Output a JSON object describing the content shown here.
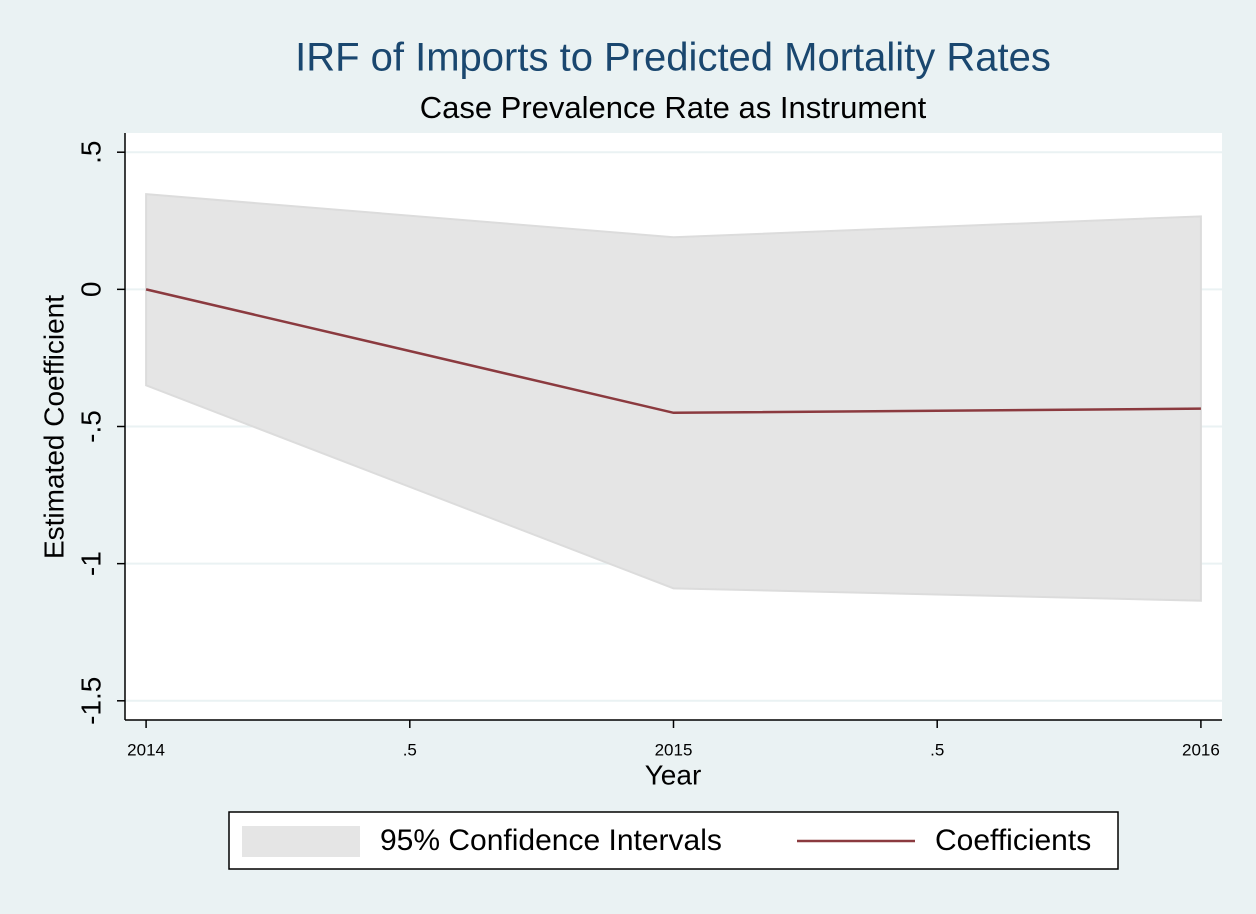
{
  "chart_data": {
    "type": "band_line",
    "title": "IRF of Imports to Predicted Mortality Rates",
    "subtitle": "Case Prevalence Rate as Instrument",
    "x_label": "Year",
    "y_label": "Estimated Coefficient",
    "x": [
      2014,
      2015,
      2016
    ],
    "series": [
      {
        "name": "95% Confidence Intervals",
        "color": "#e5e5e5",
        "lower": [
          -0.35,
          -1.09,
          -1.135
        ],
        "upper": [
          0.347,
          0.19,
          0.266
        ]
      },
      {
        "name": "Coefficients",
        "color": "#8b3a3f",
        "values": [
          0,
          -0.45,
          -0.435
        ]
      }
    ],
    "xlim": [
      2013.96,
      2016.04
    ],
    "xticks": [
      2014,
      {
        "value": 2014.5,
        "label": ".5"
      },
      2015,
      {
        "value": 2015.5,
        "label": ".5"
      },
      2016
    ],
    "ylim": [
      -1.57,
      0.57
    ],
    "yticks": [
      {
        "value": 0.5,
        "label": ".5"
      },
      0,
      {
        "value": -0.5,
        "label": "-.5"
      },
      -1,
      {
        "value": -1.5,
        "label": "-1.5"
      }
    ],
    "grid": true
  }
}
